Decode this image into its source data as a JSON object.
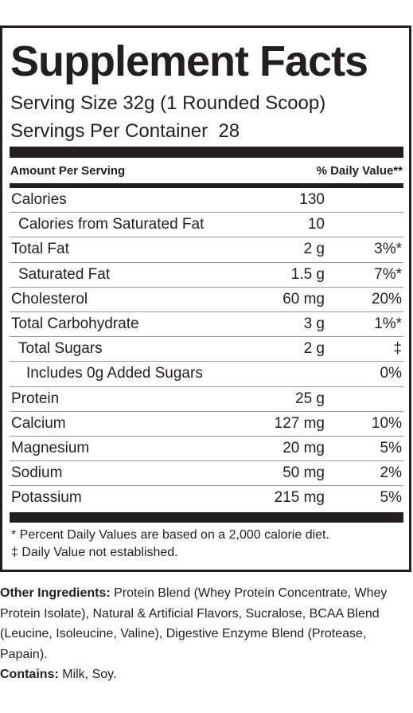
{
  "title": "Supplement Facts",
  "serving_size": "Serving Size 32g (1 Rounded Scoop)",
  "servings_per_container": "Servings Per Container  28",
  "header": {
    "amount_per_serving": "Amount Per Serving",
    "daily_value": "% Daily Value**"
  },
  "rows": [
    {
      "name": "Calories",
      "amount": "130"
    },
    {
      "name": "Calories from Saturated Fat",
      "amount": "10"
    },
    {
      "name": "Total Fat",
      "amount": "2 g",
      "dv": "3%*"
    },
    {
      "name": "Saturated Fat",
      "amount": "1.5 g",
      "dv": "7%*"
    },
    {
      "name": "Cholesterol",
      "amount": "60 mg",
      "dv": "20%"
    },
    {
      "name": "Total Carbohydrate",
      "amount": "3 g",
      "dv": "1%*"
    },
    {
      "name": "Total Sugars",
      "amount": "2 g",
      "dv": "‡"
    },
    {
      "name": "Includes 0g Added Sugars",
      "dv": "0%"
    },
    {
      "name": "Protein",
      "amount": "25 g"
    },
    {
      "name": "Calcium",
      "amount": "127 mg",
      "dv": "10%"
    },
    {
      "name": "Magnesium",
      "amount": "20 mg",
      "dv": "5%"
    },
    {
      "name": "Sodium",
      "amount": "50 mg",
      "dv": "2%"
    },
    {
      "name": "Potassium",
      "amount": "215 mg",
      "dv": "5%"
    }
  ],
  "footnotes": [
    "* Percent Daily Values are based on a 2,000 calorie diet.",
    "‡ Daily Value not established."
  ],
  "other_ingredients": {
    "label": "Other Ingredients:",
    "text": "Protein Blend (Whey Protein Concentrate, Whey Protein Isolate), Natural & Artificial Flavors, Sucralose, BCAA Blend (Leucine, Isoleucine, Valine), Digestive Enzyme Blend (Protease, Papain)."
  },
  "contains": {
    "label": "Contains:",
    "text": "Milk, Soy."
  }
}
